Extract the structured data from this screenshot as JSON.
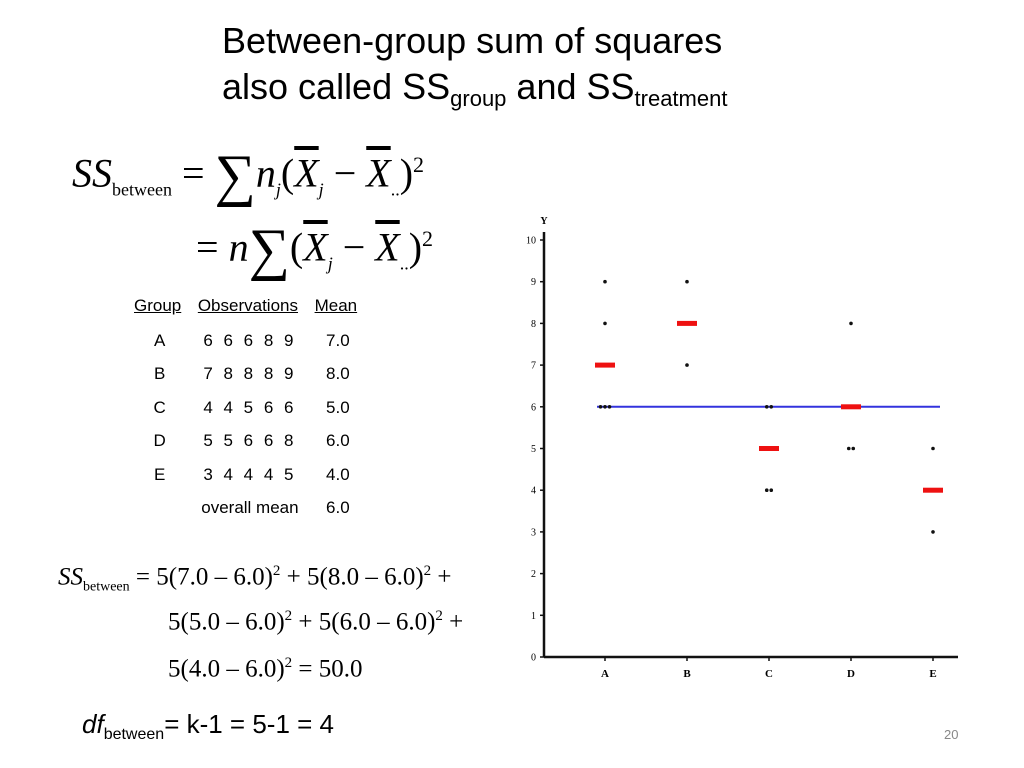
{
  "title": {
    "line1": "Between-group sum of squares",
    "line2_prefix": "also called SS",
    "line2_sub1": "group",
    "line2_mid": " and SS",
    "line2_sub2": "treatment"
  },
  "formula1": {
    "lhs": "SS",
    "lhs_sub": "between",
    "eq": " = ",
    "sum": "∑",
    "n": "n",
    "n_sub": "j",
    "open": "(",
    "xbar1": "X",
    "xbar1_sub": "j",
    "minus": " − ",
    "xbar2": "X",
    "xbar2_sub": "..",
    "close": ")",
    "exp": "2"
  },
  "formula2": {
    "eq": "= ",
    "n": "n",
    "sum": "∑",
    "open": "(",
    "xbar1": "X",
    "xbar1_sub": "j",
    "minus": " − ",
    "xbar2": "X",
    "xbar2_sub": "..",
    "close": ")",
    "exp": "2"
  },
  "table": {
    "headers": [
      "Group",
      "Observations",
      "Mean"
    ],
    "rows": [
      [
        "A",
        "6 6 6 8 9",
        "7.0"
      ],
      [
        "B",
        "7 8 8 8 9",
        "8.0"
      ],
      [
        "C",
        "4 4 5 6 6",
        "5.0"
      ],
      [
        "D",
        "5 5 6 6 8",
        "6.0"
      ],
      [
        "E",
        "3 4 4 4 5",
        "4.0"
      ]
    ],
    "overall_label": "overall mean",
    "overall_value": "6.0"
  },
  "ss_calc": {
    "lhs": "SS",
    "lhs_sub": "between",
    "line1_eq": " = ",
    "line1_a": "5(7.0 – 6.0)",
    "line1_a_exp": "2",
    "line1_b": " + 5(8.0 – 6.0)",
    "line1_b_exp": "2",
    "line1_end": " +",
    "line2_a": "5(5.0 – 6.0)",
    "line2_a_exp": "2",
    "line2_b": " + 5(6.0 – 6.0)",
    "line2_b_exp": "2",
    "line2_end": " +",
    "line3_a": "5(4.0 – 6.0)",
    "line3_a_exp": "2",
    "line3_end": " = 50.0"
  },
  "df": {
    "label": "df",
    "sub": "between",
    "rest": "= k-1 = 5-1 = 4"
  },
  "page_number": "20",
  "colors": {
    "mean": "#ee1111",
    "grand_mean": "#3333dd",
    "points": "#111111"
  },
  "chart_data": {
    "type": "scatter",
    "ylabel": "Y",
    "ylim": [
      0,
      10
    ],
    "yticks": [
      "0",
      "1",
      "2",
      "3",
      "4",
      "5",
      "6",
      "7",
      "8",
      "9",
      "10"
    ],
    "categories": [
      "A",
      "B",
      "C",
      "D",
      "E"
    ],
    "observations": [
      [
        6,
        6,
        6,
        8,
        9
      ],
      [
        7,
        8,
        8,
        8,
        9
      ],
      [
        4,
        4,
        5,
        6,
        6
      ],
      [
        5,
        5,
        6,
        6,
        8
      ],
      [
        3,
        4,
        4,
        4,
        5
      ]
    ],
    "group_means": [
      7.0,
      8.0,
      5.0,
      6.0,
      4.0
    ],
    "grand_mean": 6.0
  }
}
